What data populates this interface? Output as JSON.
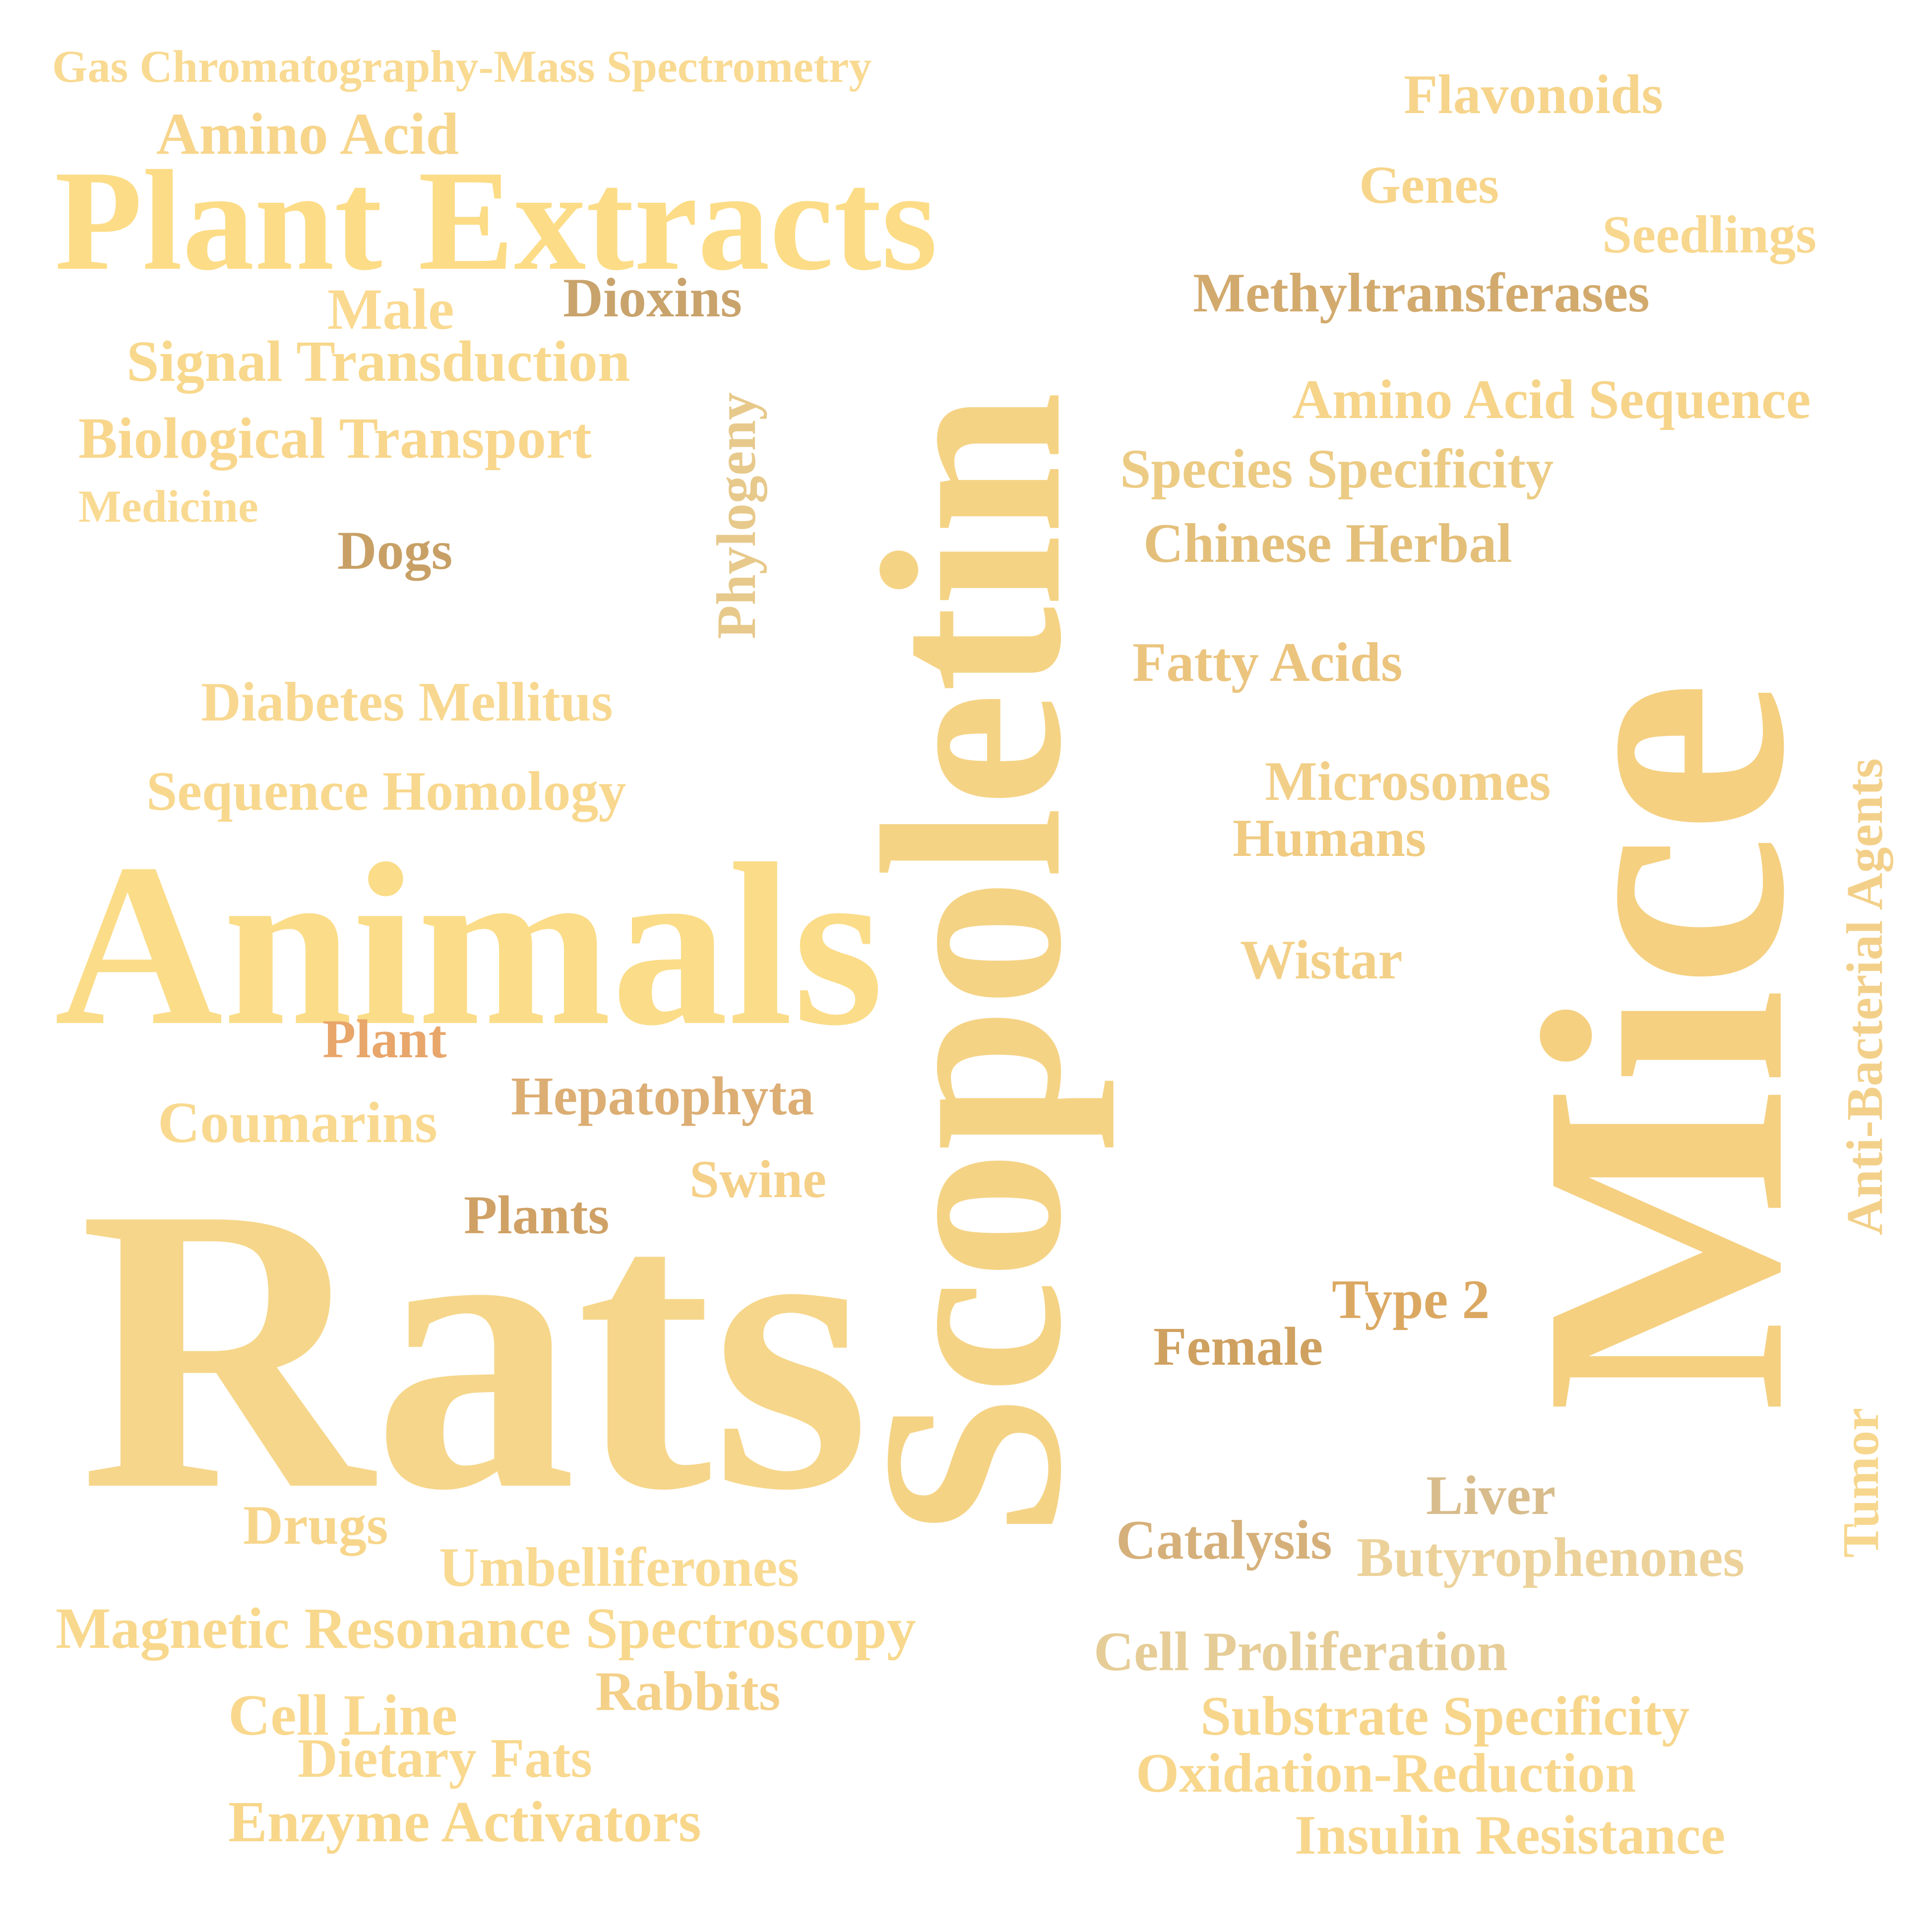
{
  "palette": {
    "background": "#ffffff",
    "light_gold": "#f9d98a",
    "gold": "#f5d283",
    "warm_gold": "#efcd86",
    "tan": "#d9b06b",
    "brown_tan": "#c59a5d",
    "pale_tan": "#e7cc98",
    "orange_tan": "#e6a66b",
    "muted_tan": "#dac090"
  },
  "words": {
    "gcms": "Gas Chromatography-Mass Spectrometry",
    "amino_acid": "Amino Acid",
    "plant_extracts": "Plant Extracts",
    "male": "Male",
    "dioxins": "Dioxins",
    "signal_transduction": "Signal Transduction",
    "biological_transport": "Biological Transport",
    "medicine": "Medicine",
    "dogs": "Dogs",
    "phylogeny": "Phylogeny",
    "scopoletin": "Scopoletin",
    "diabetes_mellitus": "Diabetes Mellitus",
    "sequence_homology": "Sequence Homology",
    "animals": "Animals",
    "plant": "Plant",
    "coumarins": "Coumarins",
    "hepatophyta": "Hepatophyta",
    "swine": "Swine",
    "plants": "Plants",
    "rats": "Rats",
    "drugs": "Drugs",
    "umbelliferones": "Umbelliferones",
    "mrs": "Magnetic Resonance Spectroscopy",
    "rabbits": "Rabbits",
    "cell_line": "Cell Line",
    "dietary_fats": "Dietary Fats",
    "enzyme_activators": "Enzyme Activators",
    "flavonoids": "Flavonoids",
    "genes": "Genes",
    "seedlings": "Seedlings",
    "methyltransferases": "Methyltransferases",
    "amino_acid_sequence": "Amino Acid Sequence",
    "species_specificity": "Species Specificity",
    "chinese_herbal": "Chinese Herbal",
    "fatty_acids": "Fatty Acids",
    "microsomes": "Microsomes",
    "humans": "Humans",
    "wistar": "Wistar",
    "mice": "Mice",
    "anti_bacterial_agents": "Anti-Bacterial Agents",
    "type_2": "Type 2",
    "female": "Female",
    "liver": "Liver",
    "catalysis": "Catalysis",
    "butyrophenones": "Butyrophenones",
    "tumor": "Tumor",
    "cell_proliferation": "Cell Proliferation",
    "substrate_specificity": "Substrate Specificity",
    "oxidation_reduction": "Oxidation-Reduction",
    "insulin_resistance": "Insulin Resistance"
  }
}
